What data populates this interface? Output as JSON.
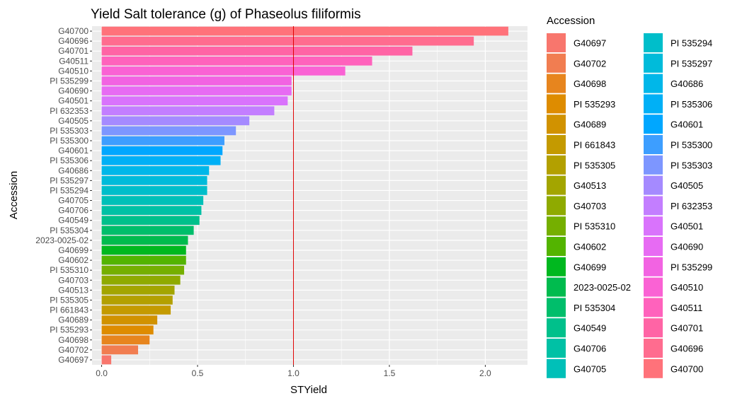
{
  "chart_data": {
    "type": "bar",
    "orientation": "horizontal",
    "title": "Yield Salt tolerance (g) of Phaseolus filiformis",
    "xlabel": "STYield",
    "ylabel": "Accession",
    "xlim": [
      -0.05,
      2.22
    ],
    "x_ticks": [
      "0.0",
      "0.5",
      "1.0",
      "1.5",
      "2.0"
    ],
    "reference_line": {
      "x": 1.0,
      "color": "#e00000"
    },
    "grid": true,
    "legend": {
      "title": "Accession",
      "placement": "right",
      "columns": 2
    },
    "categories": [
      "G40697",
      "G40702",
      "G40698",
      "PI 535293",
      "G40689",
      "PI 661843",
      "PI 535305",
      "G40513",
      "G40703",
      "PI 535310",
      "G40602",
      "G40699",
      "2023-0025-02",
      "PI 535304",
      "G40549",
      "G40706",
      "G40705",
      "PI 535294",
      "PI 535297",
      "G40686",
      "PI 535306",
      "G40601",
      "PI 535300",
      "PI 535303",
      "G40505",
      "PI 632353",
      "G40501",
      "G40690",
      "PI 535299",
      "G40510",
      "G40511",
      "G40701",
      "G40696",
      "G40700"
    ],
    "values": [
      0.05,
      0.19,
      0.25,
      0.27,
      0.29,
      0.36,
      0.37,
      0.38,
      0.41,
      0.43,
      0.44,
      0.44,
      0.45,
      0.48,
      0.51,
      0.52,
      0.53,
      0.55,
      0.55,
      0.56,
      0.62,
      0.63,
      0.64,
      0.7,
      0.77,
      0.9,
      0.97,
      0.99,
      0.99,
      1.27,
      1.41,
      1.62,
      1.94,
      2.12
    ],
    "colors": [
      "#F8766D",
      "#F17D51",
      "#E7851E",
      "#DE8C00",
      "#D19200",
      "#C49A00",
      "#B3A000",
      "#A3A500",
      "#8FAA00",
      "#75AF00",
      "#53B400",
      "#00B81F",
      "#00BB4E",
      "#00BE6B",
      "#00C08B",
      "#00C1A5",
      "#00C0B8",
      "#00BECA",
      "#00BBDA",
      "#00B7E9",
      "#00B0F6",
      "#00A7FF",
      "#3D9EFF",
      "#7D96FF",
      "#A58AFF",
      "#C37EFF",
      "#D973FC",
      "#E76BF3",
      "#F263E2",
      "#FA62D4",
      "#FF62BC",
      "#FF64A5",
      "#FF6C8F",
      "#FF727A"
    ]
  }
}
